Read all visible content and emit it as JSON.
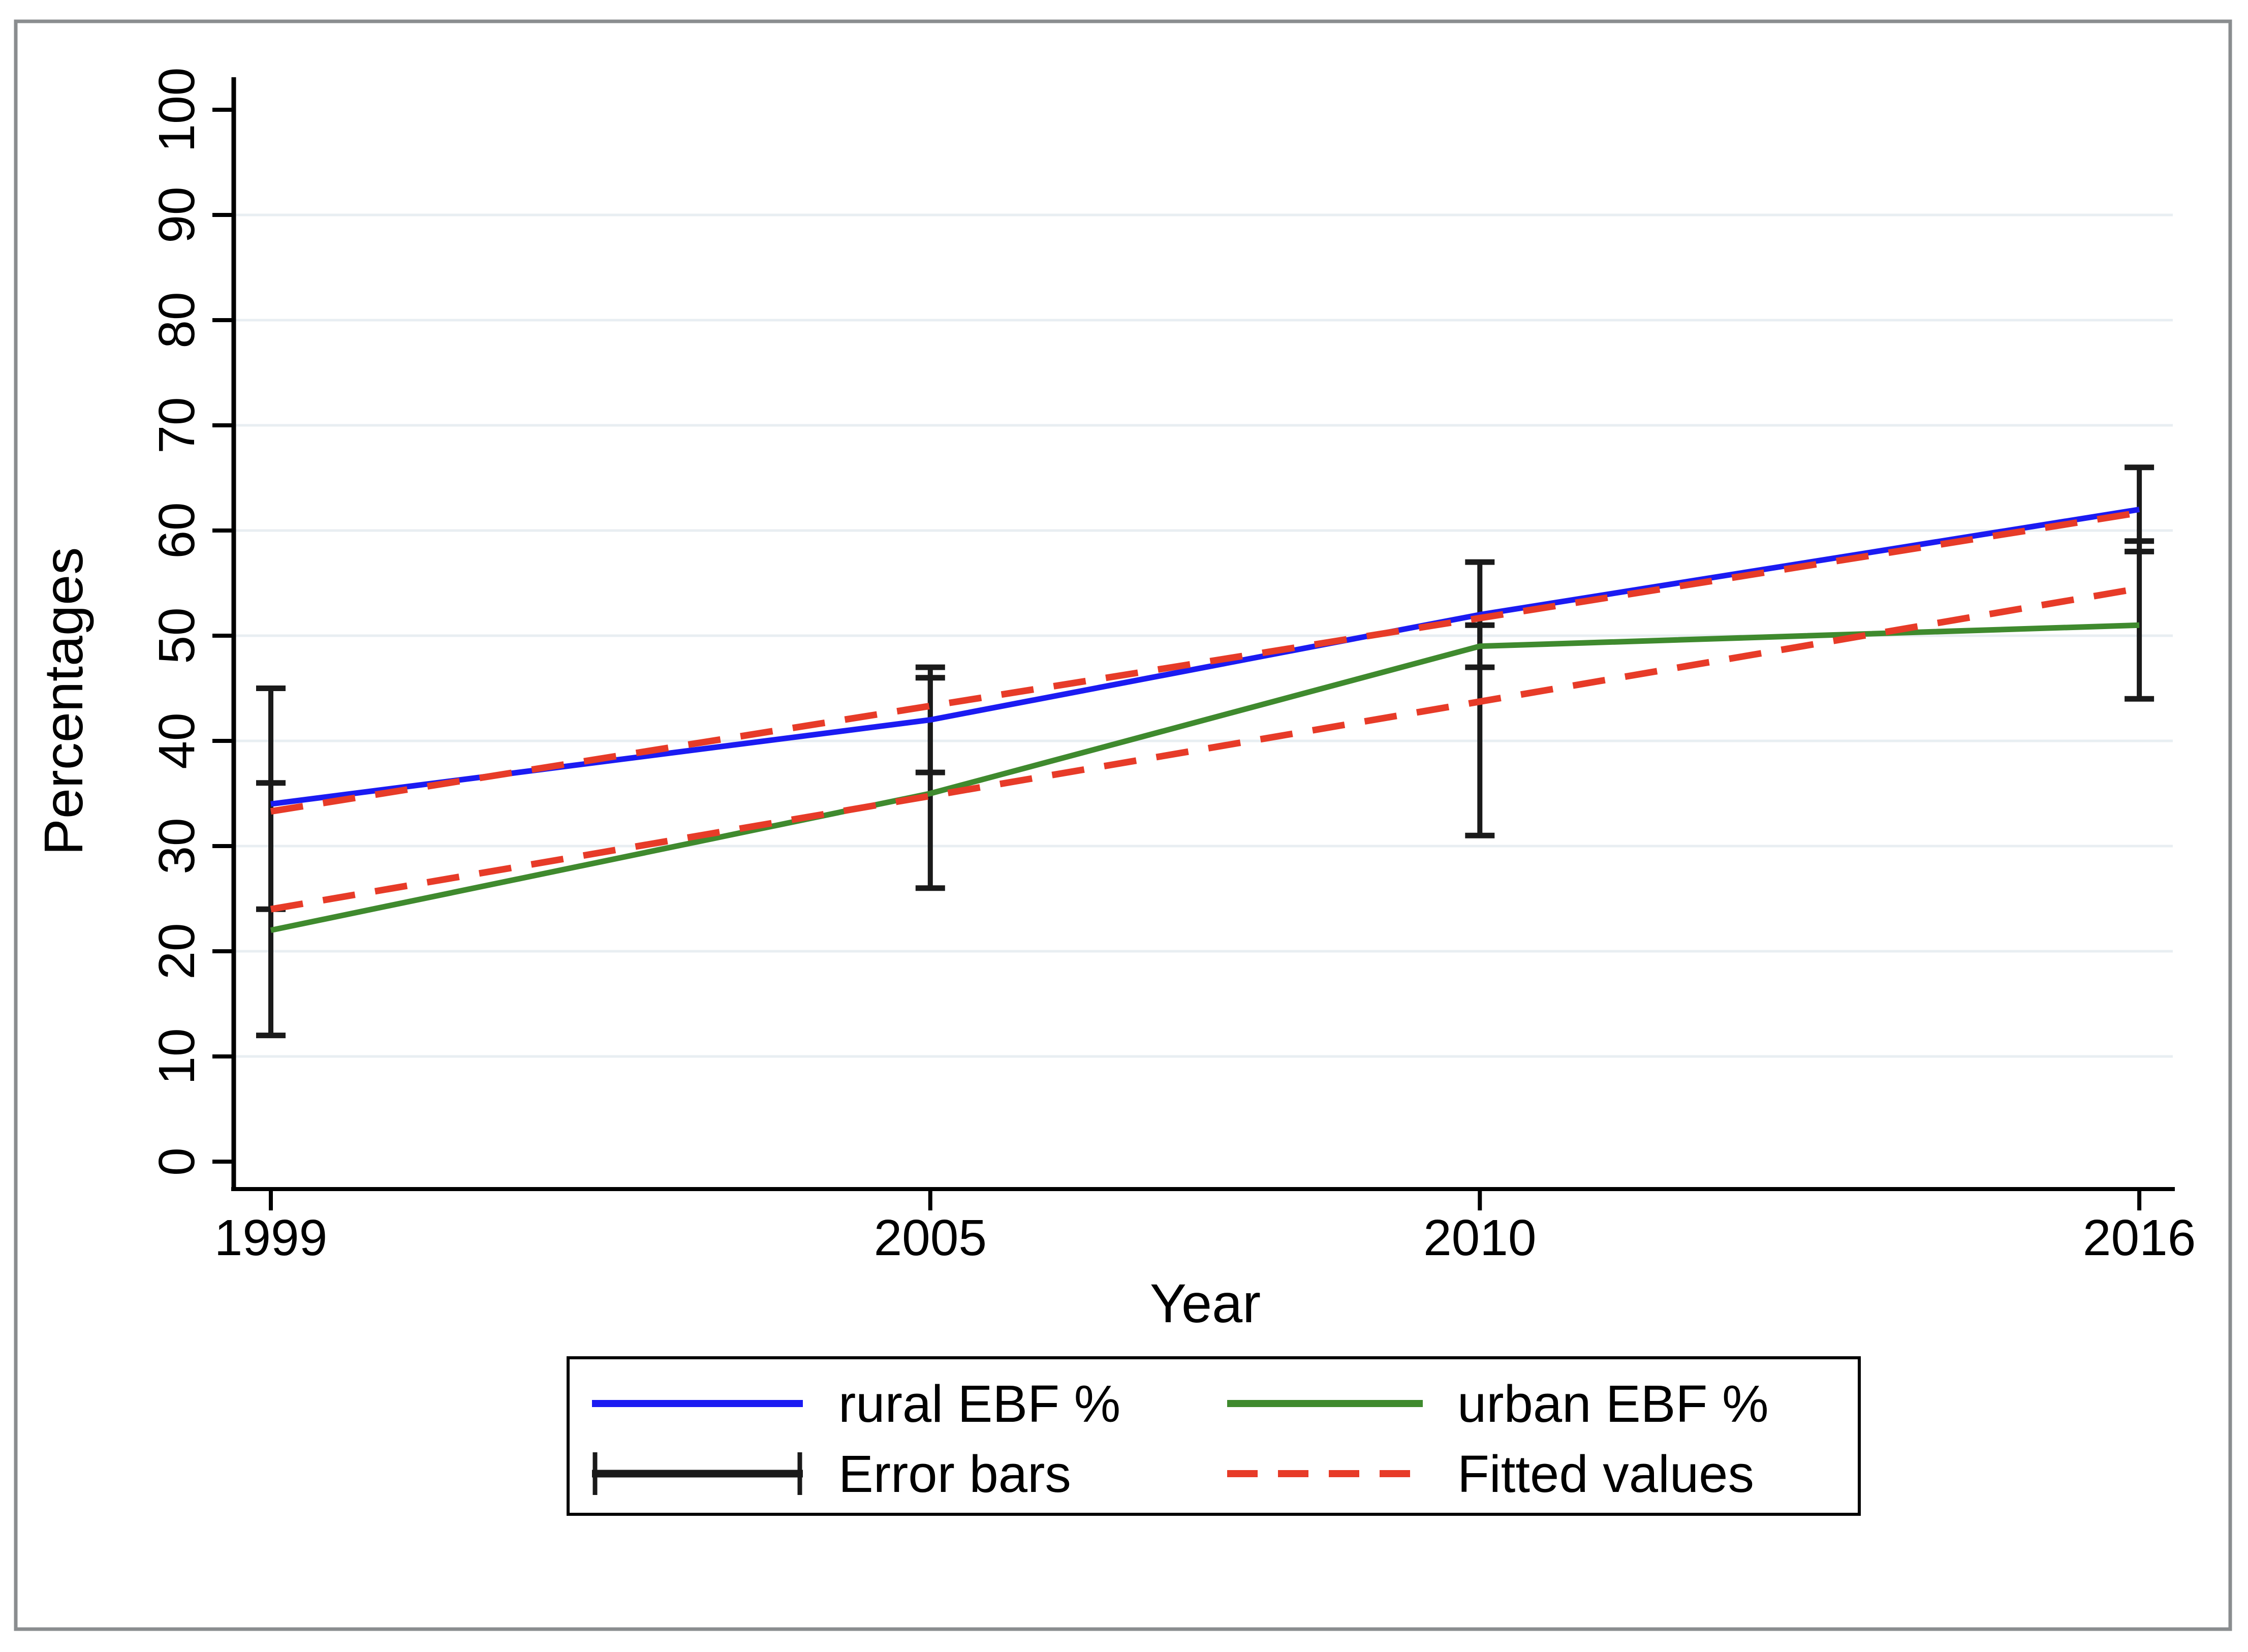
{
  "figure": {
    "background_color": "#ffffff",
    "border_color": "#8a8d8f"
  },
  "chart_data": {
    "type": "line",
    "title": "",
    "xlabel": "Year",
    "ylabel": "Percentages",
    "x": [
      1999,
      2005,
      2010,
      2016
    ],
    "x_tick_labels": [
      "1999",
      "2005",
      "2010",
      "2016"
    ],
    "y_ticks": [
      0,
      10,
      20,
      30,
      40,
      50,
      60,
      70,
      80,
      90,
      100
    ],
    "ylim": [
      0,
      100
    ],
    "xlim": [
      1999,
      2016
    ],
    "grid": "horizontal",
    "gridline_color": "#e8eef2",
    "axis_color": "#000000",
    "error_bar_color": "#1a1a1a",
    "series": [
      {
        "name": "rural EBF %",
        "color": "#1b1bf2",
        "style": "solid",
        "values": [
          34,
          42,
          52,
          62
        ],
        "ci_lower": [
          24,
          37,
          47,
          58
        ],
        "ci_upper": [
          45,
          47,
          57,
          66
        ]
      },
      {
        "name": "urban EBF %",
        "color": "#3f8a2e",
        "style": "solid",
        "values": [
          22,
          35,
          49,
          51
        ],
        "ci_lower": [
          12,
          26,
          31,
          44
        ],
        "ci_upper": [
          36,
          46,
          51,
          59
        ]
      }
    ],
    "fitted_lines": [
      {
        "name": "Fitted values (rural)",
        "color": "#e73b28",
        "style": "dashed",
        "x": [
          1999,
          2016
        ],
        "y": [
          33.3,
          61.7
        ]
      },
      {
        "name": "Fitted values (urban)",
        "color": "#e73b28",
        "style": "dashed",
        "x": [
          1999,
          2016
        ],
        "y": [
          24.0,
          54.5
        ]
      }
    ],
    "legend": {
      "position": "bottom",
      "error_bars_label": "Error bars",
      "fitted_values_label": "Fitted values"
    }
  }
}
